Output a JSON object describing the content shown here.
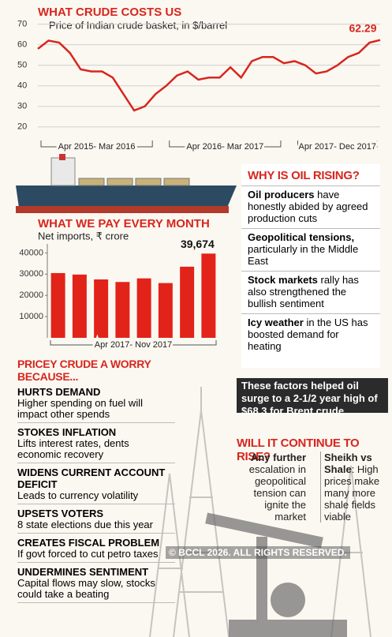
{
  "chart_data": [
    {
      "type": "line",
      "title": "WHAT CRUDE COSTS US",
      "subtitle": "Price of Indian crude basket, in $/barrel",
      "color": "#d7261e",
      "periods": [
        {
          "label": "Apr 2015- Mar 2016",
          "values": [
            58,
            62,
            61,
            56,
            48,
            47,
            47,
            44,
            36,
            28,
            30,
            36
          ]
        },
        {
          "label": "Apr 2016- Mar 2017",
          "values": [
            40,
            45,
            47,
            43,
            44,
            44,
            49,
            44,
            52,
            54,
            54,
            51
          ]
        },
        {
          "label": "Apr 2017- Dec 2017",
          "values": [
            52,
            50,
            46,
            47,
            50,
            54,
            56,
            61,
            62.29
          ]
        }
      ],
      "ylim": [
        18,
        71
      ],
      "yticks": [
        20,
        30,
        40,
        50,
        60,
        70
      ],
      "grid": true
    },
    {
      "type": "bar",
      "title": "WHAT WE PAY EVERY MONTH",
      "subtitle": "Net imports, ₹ crore",
      "color": "#e2231a",
      "period_label": "Apr 2017- Nov 2017",
      "values": [
        30500,
        29800,
        27500,
        26300,
        28000,
        25800,
        33500,
        39674
      ],
      "value_labels": [
        null,
        null,
        null,
        null,
        null,
        null,
        null,
        "39,674"
      ],
      "ylim": [
        0,
        42000
      ],
      "yticks": [
        10000,
        20000,
        30000,
        40000
      ],
      "grid": false
    }
  ],
  "why": {
    "title": "WHY IS OIL RISING?",
    "items": [
      {
        "bold": "Oil producers",
        "text": " have honestly abided by agreed production cuts"
      },
      {
        "bold": "Geopolitical tensions,",
        "text": " particularly in the Middle East"
      },
      {
        "bold": "Stock markets",
        "text": " rally has also strengthened the bullish sentiment"
      },
      {
        "bold": "Icy weather",
        "text": " in the US has boosted demand for heating"
      }
    ]
  },
  "factors": "These factors helped oil surge to a 2-1/2 year high of $68.3 for Brent crude",
  "worry": {
    "title": "PRICEY CRUDE A WORRY BECAUSE...",
    "items": [
      {
        "heading": "HURTS DEMAND",
        "text": "Higher spending on fuel will impact other spends"
      },
      {
        "heading": "STOKES INFLATION",
        "text": "Lifts interest rates, dents economic recovery"
      },
      {
        "heading": "WIDENS CURRENT ACCOUNT DEFICIT",
        "text": "Leads to currency volatility"
      },
      {
        "heading": "UPSETS VOTERS",
        "text": "8 state elections due this year"
      },
      {
        "heading": "CREATES FISCAL PROBLEM",
        "text": "If govt forced to cut petro taxes"
      },
      {
        "heading": "UNDERMINES SENTIMENT",
        "text": "Capital flows may slow, stocks could take a beating"
      }
    ]
  },
  "continue": {
    "title": "WILL IT CONTINUE TO RISE?",
    "left": {
      "bold": "Any further",
      "text": " escalation in geopolitical tension can ignite the market"
    },
    "right": {
      "bold": "Sheikh vs Shale",
      "text": ": High prices make many more shale fields viable"
    }
  },
  "watermark": "© BCCL 2026. ALL RIGHTS RESERVED."
}
